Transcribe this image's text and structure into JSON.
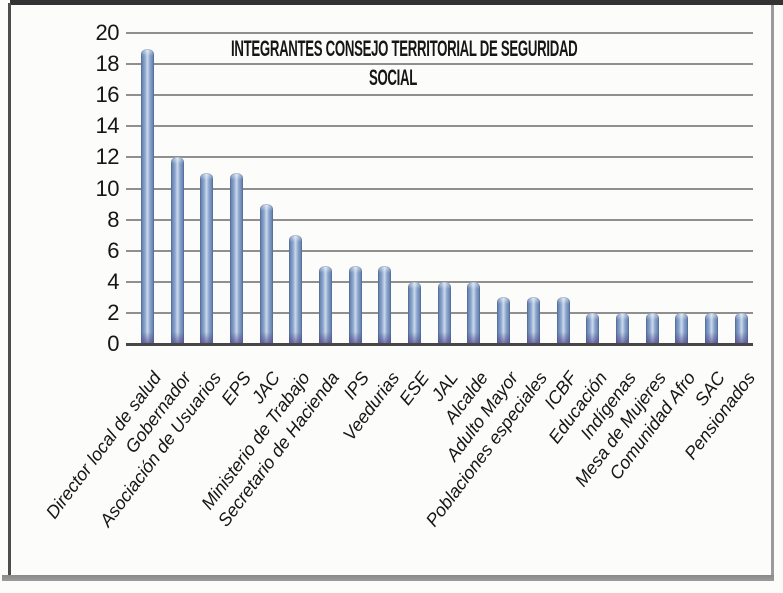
{
  "chart_data": {
    "type": "bar",
    "title": "INTEGRANTES CONSEJO TERRITORIAL DE SEGURIDAD SOCIAL",
    "title_lines": [
      "INTEGRANTES CONSEJO TERRITORIAL DE SEGURIDAD",
      "SOCIAL"
    ],
    "categories": [
      "Director local de salud",
      "Gobernador",
      "Asociación de Usuarios",
      "EPS",
      "JAC",
      "Ministerio de Trabajo",
      "Secretario de Hacienda",
      "IPS",
      "Veedurias",
      "ESE",
      "JAL",
      "Alcalde",
      "Adulto Mayor",
      "Poblaciones especiales",
      "ICBF",
      "Educación",
      "Indígenas",
      "Mesa de Mujeres",
      "Comunidad Afro",
      "SAC",
      "Pensionados"
    ],
    "values": [
      19,
      12,
      11,
      11,
      9,
      7,
      5,
      5,
      5,
      4,
      4,
      4,
      3,
      3,
      3,
      2,
      2,
      2,
      2,
      2,
      2
    ],
    "xlabel": "",
    "ylabel": "",
    "ylim": [
      0,
      20
    ],
    "yticks": [
      0,
      2,
      4,
      6,
      8,
      10,
      12,
      14,
      16,
      18,
      20
    ],
    "grid": true,
    "legend_position": "none",
    "x_label_rotation_deg": -53,
    "styles": {
      "bar_fill": "#8aa4cd",
      "bar_edge": "#5a77a6",
      "bar_highlight": "#cdd9ea",
      "bar_base": "#574b8cbb",
      "gridline": "#8f8f8f",
      "axis_line": "#474747",
      "text": "#161616",
      "background": "#fcfcfb",
      "frame_dark": "#333333",
      "frame_mid": "#4d4d4d",
      "frame_light": "#9b9b9b"
    }
  }
}
